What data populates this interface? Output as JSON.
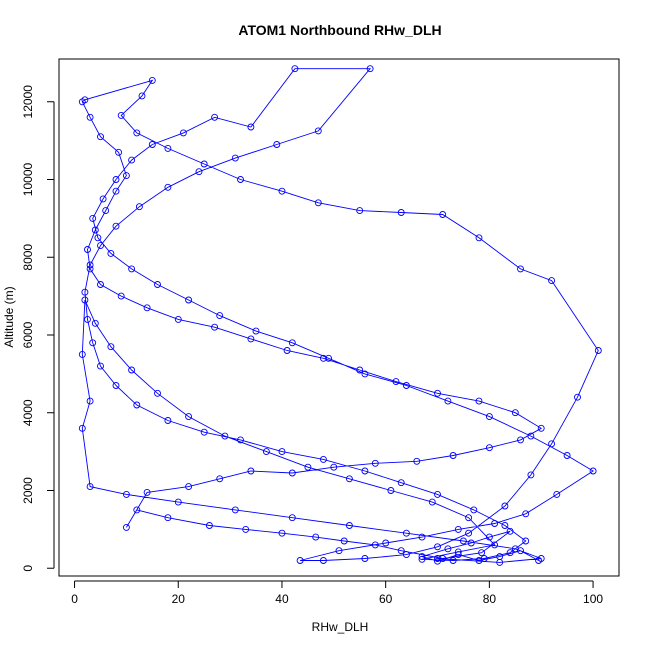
{
  "chart_data": {
    "type": "line",
    "title": "ATOM1 Northbound RHw_DLH",
    "xlabel": "RHw_DLH",
    "ylabel": "Altitude (m)",
    "xlim": [
      -3,
      105
    ],
    "ylim": [
      -200,
      13100
    ],
    "x_ticks": [
      0,
      20,
      40,
      60,
      80,
      100
    ],
    "y_ticks": [
      0,
      2000,
      4000,
      6000,
      8000,
      10000,
      12000
    ],
    "grid": false,
    "legend": "none",
    "series": [
      {
        "marker": "open-circle",
        "line": true,
        "color": "#0000ff",
        "points": [
          [
            89.5,
            200
          ],
          [
            86.0,
            450
          ],
          [
            82.0,
            300
          ],
          [
            78.0,
            200
          ],
          [
            74.0,
            350
          ],
          [
            70.0,
            180
          ],
          [
            67.0,
            300
          ],
          [
            72.0,
            500
          ],
          [
            76.5,
            650
          ],
          [
            80.0,
            800
          ],
          [
            84.0,
            950
          ],
          [
            78.5,
            400
          ],
          [
            71.0,
            250
          ],
          [
            63.0,
            450
          ],
          [
            58.0,
            600
          ],
          [
            52.0,
            700
          ],
          [
            46.5,
            800
          ],
          [
            40.0,
            900
          ],
          [
            33.0,
            1000
          ],
          [
            26.0,
            1100
          ],
          [
            18.0,
            1300
          ],
          [
            12.0,
            1500
          ],
          [
            10.0,
            1050
          ],
          [
            14.0,
            1950
          ],
          [
            22.0,
            2100
          ],
          [
            28.0,
            2300
          ],
          [
            34.0,
            2500
          ],
          [
            42.0,
            2450
          ],
          [
            50.0,
            2600
          ],
          [
            58.0,
            2700
          ],
          [
            66.0,
            2750
          ],
          [
            73.0,
            2900
          ],
          [
            80.0,
            3100
          ],
          [
            86.0,
            3300
          ],
          [
            90.0,
            3600
          ],
          [
            85.0,
            4000
          ],
          [
            78.0,
            4300
          ],
          [
            70.0,
            4500
          ],
          [
            62.0,
            4800
          ],
          [
            55.0,
            5100
          ],
          [
            48.0,
            5400
          ],
          [
            41.0,
            5600
          ],
          [
            34.0,
            5900
          ],
          [
            27.0,
            6200
          ],
          [
            20.0,
            6400
          ],
          [
            14.0,
            6700
          ],
          [
            9.0,
            7000
          ],
          [
            5.0,
            7300
          ],
          [
            3.0,
            7700
          ],
          [
            2.5,
            8200
          ],
          [
            4.0,
            8700
          ],
          [
            6.0,
            9200
          ],
          [
            8.0,
            9700
          ],
          [
            10.0,
            10100
          ],
          [
            8.5,
            10700
          ],
          [
            5.0,
            11100
          ],
          [
            3.0,
            11600
          ],
          [
            1.5,
            12000
          ],
          [
            2.0,
            12050
          ],
          [
            15.0,
            12550
          ],
          [
            13.0,
            12150
          ],
          [
            9.0,
            11650
          ],
          [
            12.0,
            11200
          ],
          [
            18.0,
            10800
          ],
          [
            25.0,
            10400
          ],
          [
            32.0,
            10000
          ],
          [
            40.0,
            9700
          ],
          [
            47.0,
            9400
          ],
          [
            55.0,
            9200
          ],
          [
            63.0,
            9150
          ],
          [
            71.0,
            9100
          ],
          [
            78.0,
            8500
          ],
          [
            86.0,
            7700
          ],
          [
            92.0,
            7400
          ],
          [
            101.0,
            5600
          ],
          [
            97.0,
            4400
          ],
          [
            92.0,
            3200
          ],
          [
            88.0,
            2400
          ],
          [
            83.0,
            1600
          ],
          [
            76.0,
            900
          ],
          [
            70.0,
            550
          ],
          [
            64.0,
            350
          ],
          [
            56.0,
            250
          ],
          [
            48.0,
            200
          ],
          [
            43.5,
            200
          ],
          [
            51.0,
            450
          ],
          [
            60.0,
            650
          ],
          [
            67.0,
            800
          ],
          [
            74.0,
            1000
          ],
          [
            81.0,
            1150
          ],
          [
            87.0,
            1400
          ],
          [
            93.0,
            1900
          ],
          [
            100.0,
            2500
          ],
          [
            95.0,
            2900
          ],
          [
            88.0,
            3400
          ],
          [
            80.0,
            3900
          ],
          [
            72.0,
            4300
          ],
          [
            64.0,
            4700
          ],
          [
            56.0,
            5000
          ],
          [
            49.0,
            5400
          ],
          [
            42.0,
            5800
          ],
          [
            35.0,
            6100
          ],
          [
            28.0,
            6500
          ],
          [
            22.0,
            6900
          ],
          [
            16.0,
            7300
          ],
          [
            11.0,
            7700
          ],
          [
            7.0,
            8100
          ],
          [
            4.5,
            8500
          ],
          [
            3.5,
            9000
          ],
          [
            5.5,
            9500
          ],
          [
            8.0,
            10000
          ],
          [
            11.0,
            10500
          ],
          [
            15.0,
            10900
          ],
          [
            21.0,
            11200
          ],
          [
            27.0,
            11600
          ],
          [
            34.0,
            11350
          ],
          [
            42.5,
            12850
          ],
          [
            57.0,
            12850
          ],
          [
            47.0,
            11250
          ],
          [
            39.0,
            10900
          ],
          [
            31.0,
            10550
          ],
          [
            24.0,
            10200
          ],
          [
            18.0,
            9800
          ],
          [
            12.5,
            9300
          ],
          [
            8.0,
            8800
          ],
          [
            5.0,
            8300
          ],
          [
            3.0,
            7800
          ],
          [
            2.0,
            7100
          ],
          [
            2.5,
            6400
          ],
          [
            3.5,
            5800
          ],
          [
            5.0,
            5200
          ],
          [
            8.0,
            4700
          ],
          [
            12.0,
            4200
          ],
          [
            18.0,
            3800
          ],
          [
            25.0,
            3500
          ],
          [
            32.0,
            3300
          ],
          [
            40.0,
            3000
          ],
          [
            48.0,
            2800
          ],
          [
            56.0,
            2500
          ],
          [
            63.0,
            2200
          ],
          [
            70.0,
            1900
          ],
          [
            77.0,
            1500
          ],
          [
            83.0,
            1100
          ],
          [
            87.0,
            700
          ],
          [
            84.0,
            400
          ],
          [
            79.0,
            250
          ],
          [
            73.0,
            200
          ],
          [
            67.0,
            230
          ],
          [
            74.0,
            420
          ],
          [
            81.0,
            600
          ],
          [
            76.0,
            1300
          ],
          [
            69.0,
            1700
          ],
          [
            61.0,
            2000
          ],
          [
            53.0,
            2300
          ],
          [
            45.0,
            2600
          ],
          [
            37.0,
            3000
          ],
          [
            29.0,
            3400
          ],
          [
            22.0,
            3900
          ],
          [
            16.0,
            4500
          ],
          [
            11.0,
            5100
          ],
          [
            7.0,
            5700
          ],
          [
            4.0,
            6300
          ],
          [
            2.0,
            6900
          ],
          [
            1.5,
            5500
          ],
          [
            3.0,
            4300
          ],
          [
            1.5,
            3600
          ],
          [
            3.0,
            2100
          ],
          [
            10.0,
            1900
          ],
          [
            20.0,
            1700
          ],
          [
            31.0,
            1500
          ],
          [
            42.0,
            1300
          ],
          [
            53.0,
            1100
          ],
          [
            64.0,
            900
          ],
          [
            75.0,
            700
          ],
          [
            85.0,
            500
          ],
          [
            90.0,
            250
          ],
          [
            82.0,
            150
          ],
          [
            70.0,
            250
          ]
        ]
      }
    ]
  }
}
